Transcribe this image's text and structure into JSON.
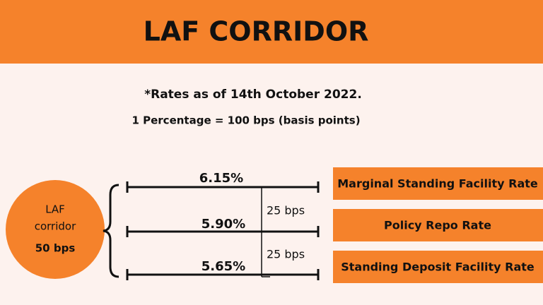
{
  "header": {
    "title": "LAF CORRIDOR"
  },
  "note": "*Rates as of 14th October 2022.",
  "conversion": "1 Percentage = 100 bps (basis points)",
  "corridor": {
    "lines": [
      "LAF",
      "corridor",
      "50 bps"
    ]
  },
  "rates": [
    {
      "value": "6.15%",
      "label": "Marginal Standing Facility Rate"
    },
    {
      "value": "5.90%",
      "label": "Policy Repo Rate"
    },
    {
      "value": "5.65%",
      "label": "Standing Deposit Facility Rate"
    }
  ],
  "gaps": [
    "25 bps",
    "25 bps"
  ]
}
